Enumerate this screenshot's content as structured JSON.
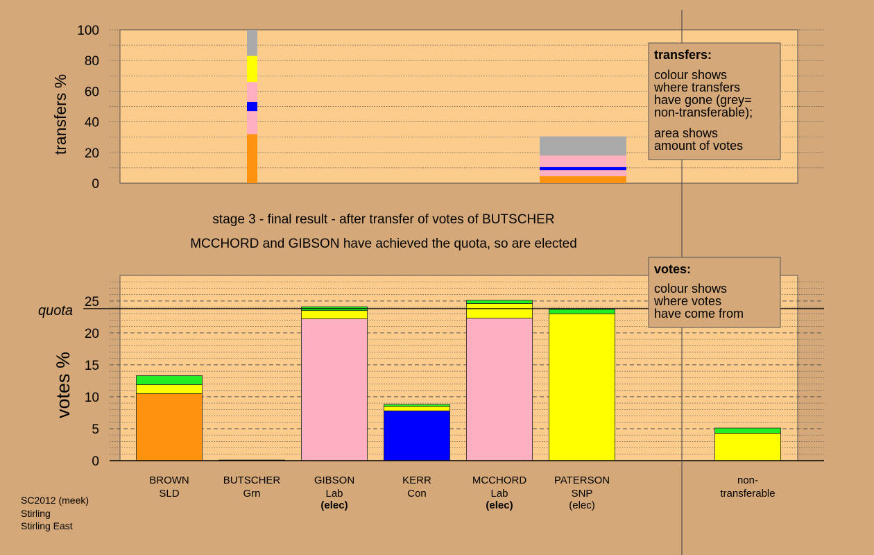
{
  "colors": {
    "background": "#d4a878",
    "plot_bg": "#fbcc8c",
    "SLD": "#ff9310",
    "Grn": "#22ee22",
    "Lab": "#ffb0c0",
    "Con": "#0000ff",
    "SNP": "#ffff00",
    "nontransferable": "#aaaaaa",
    "divider": "#666666"
  },
  "top_chart": {
    "ylabel": "transfers %",
    "yticks": [
      "0",
      "20",
      "40",
      "60",
      "80",
      "100"
    ],
    "ylim": [
      0,
      100
    ],
    "legend": {
      "title": "transfers:",
      "lines1": [
        "colour shows",
        "where transfers",
        "have gone (grey=",
        "non-transferable);"
      ],
      "lines2": [
        "area shows",
        "amount of votes"
      ]
    }
  },
  "stage_title": "stage 3 - final result - after transfer of votes of BUTSCHER",
  "stage_subtitle": "MCCHORD and GIBSON have achieved the quota, so are elected",
  "bottom_chart": {
    "ylabel": "votes %",
    "yticks": [
      "0",
      "5",
      "10",
      "15",
      "20",
      "25"
    ],
    "ylim": [
      0,
      29
    ],
    "quota_label": "quota",
    "quota": 23.8,
    "legend": {
      "title": "votes:",
      "lines": [
        "colour shows",
        "where votes",
        "have come from"
      ]
    }
  },
  "candidates": [
    {
      "name": "BROWN",
      "party": "SLD",
      "status": ""
    },
    {
      "name": "BUTSCHER",
      "party": "Grn",
      "status": ""
    },
    {
      "name": "GIBSON",
      "party": "Lab",
      "status": "(elec)"
    },
    {
      "name": "KERR",
      "party": "Con",
      "status": ""
    },
    {
      "name": "MCCHORD",
      "party": "Lab",
      "status": "(elec)"
    },
    {
      "name": "PATERSON",
      "party": "SNP",
      "status": "(elec)"
    }
  ],
  "nontransferable_label": [
    "non-",
    "transferable"
  ],
  "footer": [
    "SC2012 (meek)",
    "Stirling",
    "Stirling East"
  ],
  "chart_data": [
    {
      "type": "bar",
      "title": "",
      "ylabel": "transfers %",
      "ylim": [
        0,
        100
      ],
      "stacked_columns": [
        {
          "column": "BUTSCHER (source of transfers)",
          "segments": [
            {
              "party": "SLD",
              "from": 0,
              "to": 32
            },
            {
              "party": "Lab",
              "from": 32,
              "to": 47
            },
            {
              "party": "Con",
              "from": 47,
              "to": 53
            },
            {
              "party": "Lab",
              "from": 53,
              "to": 66
            },
            {
              "party": "SNP",
              "from": 66,
              "to": 83
            },
            {
              "party": "nontransferable",
              "from": 83,
              "to": 100
            }
          ]
        },
        {
          "column": "block at right",
          "segments": [
            {
              "party": "SLD",
              "from": 0,
              "to": 4.5
            },
            {
              "party": "Lab",
              "from": 4.5,
              "to": 8.5
            },
            {
              "party": "Con",
              "from": 8.5,
              "to": 10.5
            },
            {
              "party": "Lab",
              "from": 10.5,
              "to": 18
            },
            {
              "party": "nontransferable",
              "from": 18,
              "to": 30.5
            }
          ]
        }
      ]
    },
    {
      "type": "bar",
      "title": "stage 3 - final result - after transfer of votes of BUTSCHER",
      "ylabel": "votes %",
      "ylim": [
        0,
        29
      ],
      "quota": 23.8,
      "categories": [
        "BROWN SLD",
        "BUTSCHER Grn",
        "GIBSON Lab",
        "KERR Con",
        "MCCHORD Lab",
        "PATERSON SNP",
        "non-transferable"
      ],
      "stacks": [
        [
          {
            "party": "SLD",
            "value": 10.5
          },
          {
            "party": "SNP",
            "value": 1.4
          },
          {
            "party": "Grn",
            "value": 1.4
          }
        ],
        [
          {
            "party": "Grn",
            "value": 0.1
          }
        ],
        [
          {
            "party": "Lab",
            "value": 22.2
          },
          {
            "party": "SNP",
            "value": 1.3
          },
          {
            "party": "Grn",
            "value": 0.6
          }
        ],
        [
          {
            "party": "Con",
            "value": 7.8
          },
          {
            "party": "SNP",
            "value": 0.7
          },
          {
            "party": "Grn",
            "value": 0.3
          }
        ],
        [
          {
            "party": "Lab",
            "value": 22.3
          },
          {
            "party": "SNP",
            "value": 2.3
          },
          {
            "party": "Grn",
            "value": 0.5
          }
        ],
        [
          {
            "party": "SNP",
            "value": 23.0
          },
          {
            "party": "Grn",
            "value": 0.7
          }
        ],
        [
          {
            "party": "SNP",
            "value": 4.3
          },
          {
            "party": "Grn",
            "value": 0.8
          }
        ]
      ]
    }
  ]
}
